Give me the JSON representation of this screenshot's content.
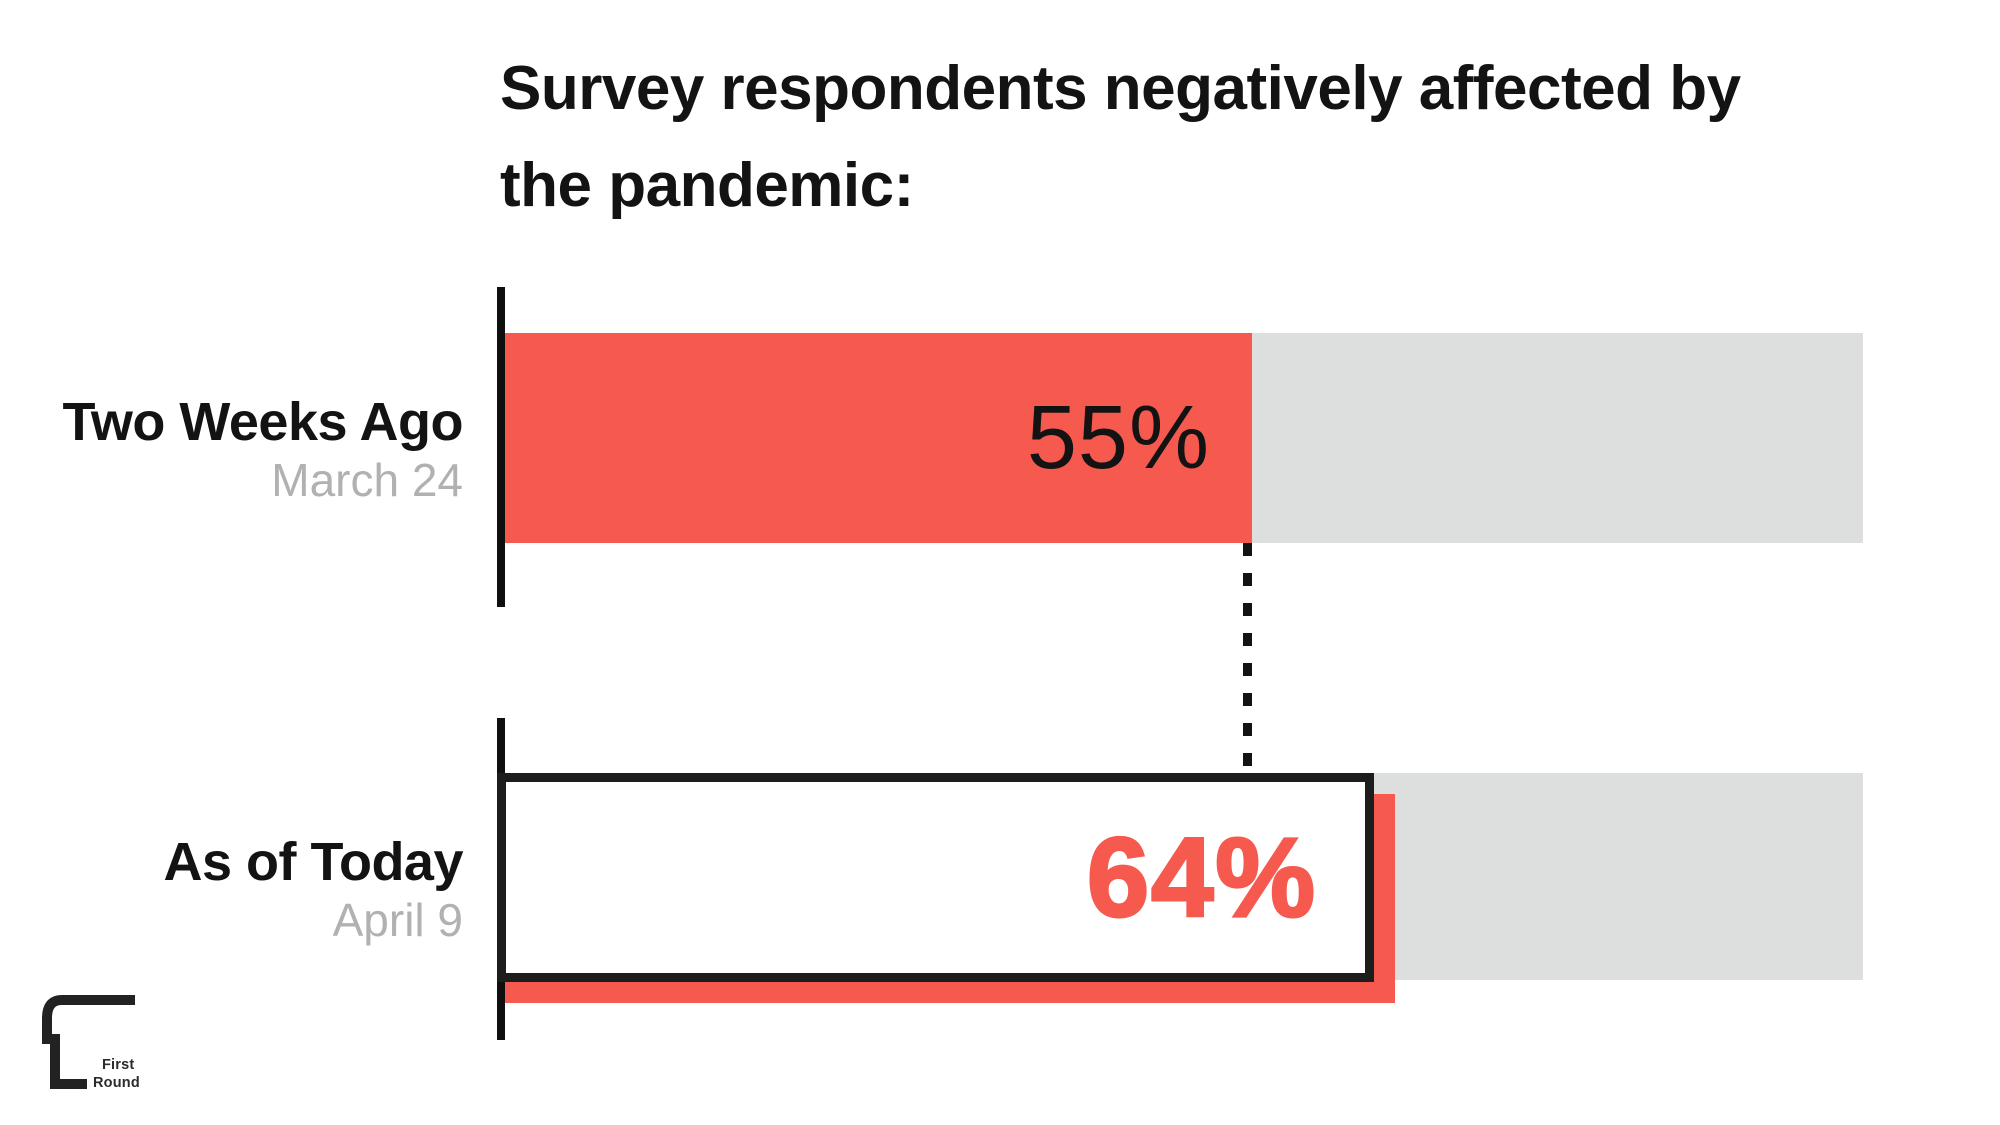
{
  "title_lines": [
    "Survey respondents negatively affected by",
    "the pandemic:"
  ],
  "rows": [
    {
      "label": "Two Weeks Ago",
      "date": "March 24",
      "value": 55,
      "value_label": "55%"
    },
    {
      "label": "As of Today",
      "date": "April 9",
      "value": 64,
      "value_label": "64%"
    }
  ],
  "logo": {
    "line1": "First",
    "line2": "Round"
  },
  "colors": {
    "accent_red": "#F6594E",
    "track_gray": "#DDDEDE",
    "ink": "#131313",
    "muted_gray": "#B1B1B1"
  },
  "chart_data": {
    "type": "bar",
    "orientation": "horizontal",
    "title": "Survey respondents negatively affected by the pandemic:",
    "categories": [
      "Two Weeks Ago",
      "As of Today"
    ],
    "category_sublabels": [
      "March 24",
      "April 9"
    ],
    "series": [
      {
        "name": "Negatively affected",
        "values": [
          55,
          64
        ]
      }
    ],
    "values": [
      55,
      64
    ],
    "value_labels": [
      "55%",
      "64%"
    ],
    "xlim": [
      0,
      100
    ],
    "xlabel": "",
    "ylabel": "",
    "grid": false,
    "legend": false,
    "annotations": [
      "Dashed vertical line drops from the 55% end of the first bar to the top of the second bar",
      "Second bar drawn as white box with black outline and red drop-shadow offset"
    ]
  }
}
